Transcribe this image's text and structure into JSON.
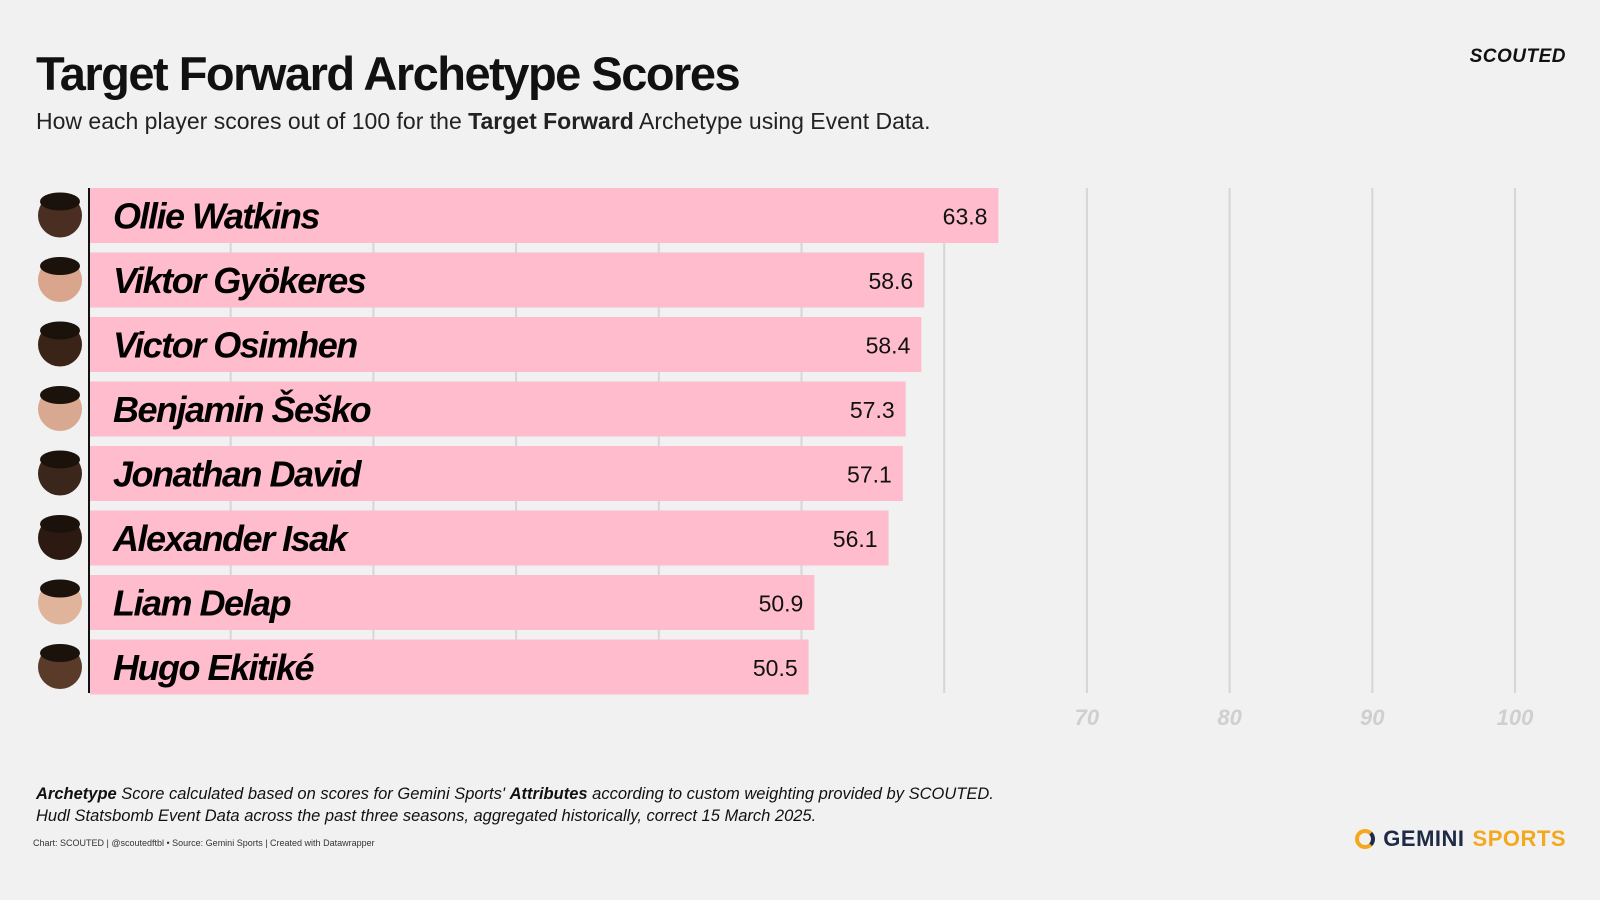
{
  "header": {
    "title": "Target Forward Archetype Scores",
    "subtitle_pre": "How each player scores out of 100 for the ",
    "subtitle_bold": "Target Forward",
    "subtitle_post": " Archetype using Event Data.",
    "brand": "SCOUTED"
  },
  "chart_data": {
    "type": "bar",
    "orientation": "horizontal",
    "categories": [
      "Ollie Watkins",
      "Viktor  Gyökeres",
      "Victor Osimhen",
      "Benjamin Šeško",
      "Jonathan David",
      "Alexander Isak",
      "Liam Delap",
      "Hugo Ekitiké"
    ],
    "values": [
      63.8,
      58.6,
      58.4,
      57.3,
      57.1,
      56.1,
      50.9,
      50.5
    ],
    "xlim": [
      0,
      100
    ],
    "ticks": [
      10,
      20,
      30,
      40,
      50,
      60,
      70,
      80,
      90,
      100
    ],
    "tick_labels_visible": [
      "70",
      "80",
      "90",
      "100"
    ],
    "bar_color": "#ffbccd",
    "grid": true
  },
  "footer": {
    "note1_bold": "Archetype",
    "note1_a": " Score calculated based on scores for Gemini Sports' ",
    "note1_bold2": "Attributes",
    "note1_b": " according to custom weighting provided by SCOUTED.",
    "note2": "Hudl Statsbomb Event Data across the past three seasons, aggregated historically, correct 15 March 2025.",
    "credit": "Chart: SCOUTED | @scoutedftbl • Source: Gemini Sports | Created with Datawrapper",
    "logo_a": "GEMINI",
    "logo_b": "SPORTS"
  }
}
